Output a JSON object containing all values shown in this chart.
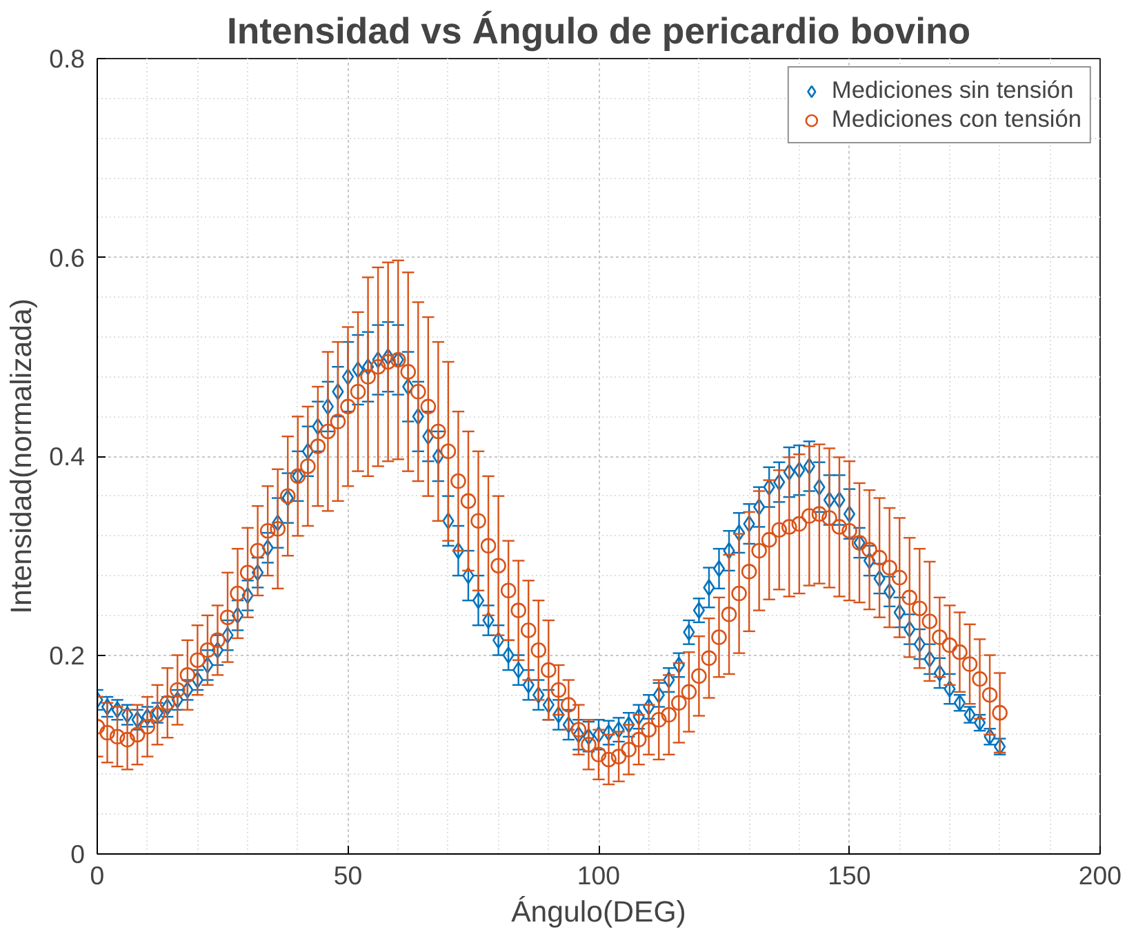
{
  "chart_data": {
    "type": "scatter",
    "title": "Intensidad vs Ángulo de pericardio bovino",
    "xlabel": "Ángulo(DEG)",
    "ylabel": "Intensidad(normalizada)",
    "x": [
      0,
      2,
      4,
      6,
      8,
      10,
      12,
      14,
      16,
      18,
      20,
      22,
      24,
      26,
      28,
      30,
      32,
      34,
      36,
      38,
      40,
      42,
      44,
      46,
      48,
      50,
      52,
      54,
      56,
      58,
      60,
      62,
      64,
      66,
      68,
      70,
      72,
      74,
      76,
      78,
      80,
      82,
      84,
      86,
      88,
      90,
      92,
      94,
      96,
      98,
      100,
      102,
      104,
      106,
      108,
      110,
      112,
      114,
      116,
      118,
      120,
      122,
      124,
      126,
      128,
      130,
      132,
      134,
      136,
      138,
      140,
      142,
      144,
      146,
      148,
      150,
      152,
      154,
      156,
      158,
      160,
      162,
      164,
      166,
      168,
      170,
      172,
      174,
      176,
      178,
      180
    ],
    "series": [
      {
        "name": "Mediciones sin tensión",
        "color": "#0072bd",
        "marker": "diamond",
        "values": [
          0.155,
          0.148,
          0.145,
          0.14,
          0.135,
          0.138,
          0.142,
          0.148,
          0.155,
          0.165,
          0.175,
          0.19,
          0.205,
          0.22,
          0.24,
          0.26,
          0.283,
          0.308,
          0.333,
          0.358,
          0.38,
          0.405,
          0.43,
          0.45,
          0.465,
          0.48,
          0.487,
          0.49,
          0.497,
          0.5,
          0.497,
          0.47,
          0.44,
          0.42,
          0.4,
          0.335,
          0.305,
          0.28,
          0.255,
          0.235,
          0.215,
          0.2,
          0.185,
          0.17,
          0.16,
          0.15,
          0.14,
          0.13,
          0.12,
          0.118,
          0.12,
          0.122,
          0.125,
          0.13,
          0.138,
          0.148,
          0.16,
          0.175,
          0.19,
          0.223,
          0.245,
          0.268,
          0.287,
          0.305,
          0.323,
          0.332,
          0.349,
          0.369,
          0.374,
          0.384,
          0.386,
          0.39,
          0.369,
          0.356,
          0.356,
          0.342,
          0.313,
          0.295,
          0.277,
          0.264,
          0.243,
          0.226,
          0.211,
          0.196,
          0.182,
          0.166,
          0.152,
          0.14,
          0.132,
          0.118,
          0.108
        ],
        "errors": [
          0.01,
          0.01,
          0.01,
          0.01,
          0.01,
          0.01,
          0.01,
          0.01,
          0.01,
          0.01,
          0.01,
          0.015,
          0.015,
          0.015,
          0.015,
          0.015,
          0.015,
          0.015,
          0.025,
          0.025,
          0.025,
          0.025,
          0.025,
          0.025,
          0.025,
          0.035,
          0.035,
          0.035,
          0.035,
          0.035,
          0.035,
          0.035,
          0.035,
          0.025,
          0.025,
          0.025,
          0.025,
          0.025,
          0.025,
          0.015,
          0.015,
          0.015,
          0.015,
          0.015,
          0.015,
          0.015,
          0.015,
          0.015,
          0.015,
          0.015,
          0.015,
          0.012,
          0.012,
          0.012,
          0.012,
          0.012,
          0.012,
          0.012,
          0.012,
          0.012,
          0.012,
          0.02,
          0.02,
          0.02,
          0.02,
          0.02,
          0.02,
          0.02,
          0.02,
          0.025,
          0.025,
          0.025,
          0.025,
          0.025,
          0.025,
          0.025,
          0.015,
          0.015,
          0.015,
          0.015,
          0.015,
          0.015,
          0.015,
          0.015,
          0.015,
          0.015,
          0.008,
          0.008,
          0.008,
          0.008,
          0.008
        ]
      },
      {
        "name": "Mediciones con tensión",
        "color": "#d95319",
        "marker": "circle",
        "values": [
          0.128,
          0.122,
          0.118,
          0.115,
          0.12,
          0.128,
          0.14,
          0.152,
          0.165,
          0.18,
          0.195,
          0.205,
          0.215,
          0.238,
          0.262,
          0.283,
          0.305,
          0.325,
          0.327,
          0.36,
          0.38,
          0.39,
          0.41,
          0.425,
          0.435,
          0.45,
          0.465,
          0.48,
          0.49,
          0.495,
          0.497,
          0.485,
          0.465,
          0.45,
          0.425,
          0.405,
          0.375,
          0.355,
          0.335,
          0.31,
          0.29,
          0.265,
          0.245,
          0.225,
          0.205,
          0.185,
          0.165,
          0.15,
          0.125,
          0.11,
          0.1,
          0.095,
          0.098,
          0.105,
          0.115,
          0.125,
          0.135,
          0.14,
          0.152,
          0.163,
          0.179,
          0.197,
          0.218,
          0.241,
          0.262,
          0.284,
          0.305,
          0.316,
          0.326,
          0.329,
          0.332,
          0.34,
          0.342,
          0.338,
          0.329,
          0.325,
          0.313,
          0.306,
          0.298,
          0.288,
          0.278,
          0.258,
          0.247,
          0.234,
          0.218,
          0.21,
          0.203,
          0.191,
          0.176,
          0.16,
          0.142
        ],
        "errors": [
          0.03,
          0.03,
          0.03,
          0.03,
          0.03,
          0.03,
          0.03,
          0.035,
          0.035,
          0.035,
          0.035,
          0.035,
          0.035,
          0.045,
          0.045,
          0.045,
          0.045,
          0.045,
          0.06,
          0.06,
          0.06,
          0.06,
          0.06,
          0.08,
          0.08,
          0.08,
          0.08,
          0.1,
          0.1,
          0.1,
          0.1,
          0.1,
          0.09,
          0.09,
          0.09,
          0.09,
          0.07,
          0.07,
          0.07,
          0.07,
          0.07,
          0.05,
          0.05,
          0.05,
          0.05,
          0.05,
          0.025,
          0.025,
          0.025,
          0.025,
          0.025,
          0.025,
          0.025,
          0.025,
          0.025,
          0.025,
          0.04,
          0.04,
          0.04,
          0.04,
          0.04,
          0.04,
          0.04,
          0.06,
          0.06,
          0.06,
          0.06,
          0.06,
          0.06,
          0.07,
          0.07,
          0.07,
          0.07,
          0.07,
          0.07,
          0.07,
          0.06,
          0.06,
          0.06,
          0.06,
          0.06,
          0.06,
          0.06,
          0.06,
          0.04,
          0.04,
          0.04,
          0.04,
          0.04,
          0.04,
          0.04
        ]
      }
    ],
    "xlim": [
      0,
      200
    ],
    "ylim": [
      0,
      0.8
    ],
    "xticks": [
      0,
      50,
      100,
      150,
      200
    ],
    "yticks": [
      0,
      0.2,
      0.4,
      0.6,
      0.8
    ],
    "grid": true,
    "legend": "top right"
  }
}
